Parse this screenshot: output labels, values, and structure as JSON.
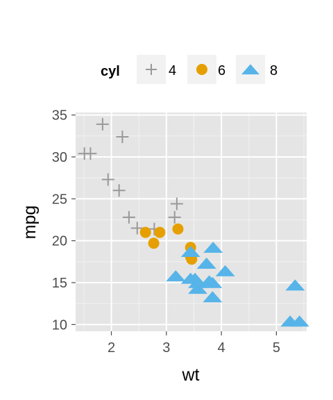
{
  "chart_data": {
    "type": "scatter",
    "xlabel": "wt",
    "ylabel": "mpg",
    "xlim": [
      1.35,
      5.55
    ],
    "ylim": [
      9.2,
      35.3
    ],
    "xticks": [
      2,
      3,
      4,
      5
    ],
    "yticks": [
      10,
      15,
      20,
      25,
      30,
      35
    ],
    "grid": true,
    "legend": {
      "title": "cyl",
      "placement": "top"
    },
    "series": [
      {
        "name": "4",
        "shape": "plus",
        "color": "#999999",
        "points": [
          [
            1.51,
            30.4
          ],
          [
            1.62,
            30.4
          ],
          [
            1.84,
            33.9
          ],
          [
            1.94,
            27.3
          ],
          [
            2.14,
            26.0
          ],
          [
            2.2,
            32.4
          ],
          [
            2.32,
            22.8
          ],
          [
            2.47,
            21.5
          ],
          [
            2.78,
            21.4
          ],
          [
            3.15,
            22.8
          ],
          [
            3.19,
            24.4
          ]
        ]
      },
      {
        "name": "6",
        "shape": "circle",
        "color": "#E69F00",
        "points": [
          [
            2.62,
            21.0
          ],
          [
            2.77,
            19.7
          ],
          [
            2.88,
            21.0
          ],
          [
            3.21,
            21.4
          ],
          [
            3.44,
            18.1
          ],
          [
            3.44,
            19.2
          ],
          [
            3.46,
            17.8
          ]
        ]
      },
      {
        "name": "8",
        "shape": "triangle",
        "color": "#56B4E9",
        "points": [
          [
            3.17,
            15.8
          ],
          [
            3.44,
            18.7
          ],
          [
            3.52,
            15.5
          ],
          [
            3.57,
            14.3
          ],
          [
            3.57,
            15.0
          ],
          [
            3.73,
            17.3
          ],
          [
            3.78,
            15.2
          ],
          [
            3.84,
            13.3
          ],
          [
            3.85,
            19.2
          ],
          [
            4.07,
            16.4
          ],
          [
            3.44,
            15.5
          ],
          [
            3.84,
            15.0
          ],
          [
            5.25,
            10.4
          ],
          [
            5.42,
            10.4
          ],
          [
            5.34,
            14.7
          ]
        ]
      }
    ]
  }
}
